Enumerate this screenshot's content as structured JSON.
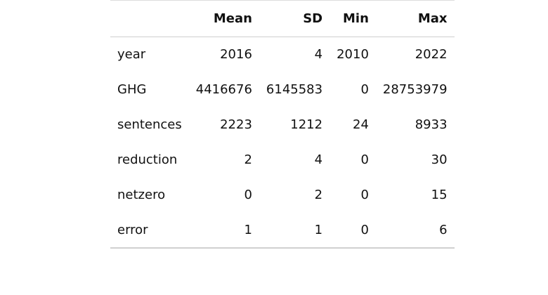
{
  "table": {
    "columns": [
      "",
      "Mean",
      "SD",
      "Min",
      "Max"
    ],
    "rows": [
      {
        "variable": "year",
        "mean": "2016",
        "sd": "4",
        "min": "2010",
        "max": "2022"
      },
      {
        "variable": "GHG",
        "mean": "4416676",
        "sd": "6145583",
        "min": "0",
        "max": "28753979"
      },
      {
        "variable": "sentences",
        "mean": "2223",
        "sd": "1212",
        "min": "24",
        "max": "8933"
      },
      {
        "variable": "reduction",
        "mean": "2",
        "sd": "4",
        "min": "0",
        "max": "30"
      },
      {
        "variable": "netzero",
        "mean": "0",
        "sd": "2",
        "min": "0",
        "max": "15"
      },
      {
        "variable": "error",
        "mean": "1",
        "sd": "1",
        "min": "0",
        "max": "6"
      }
    ]
  }
}
